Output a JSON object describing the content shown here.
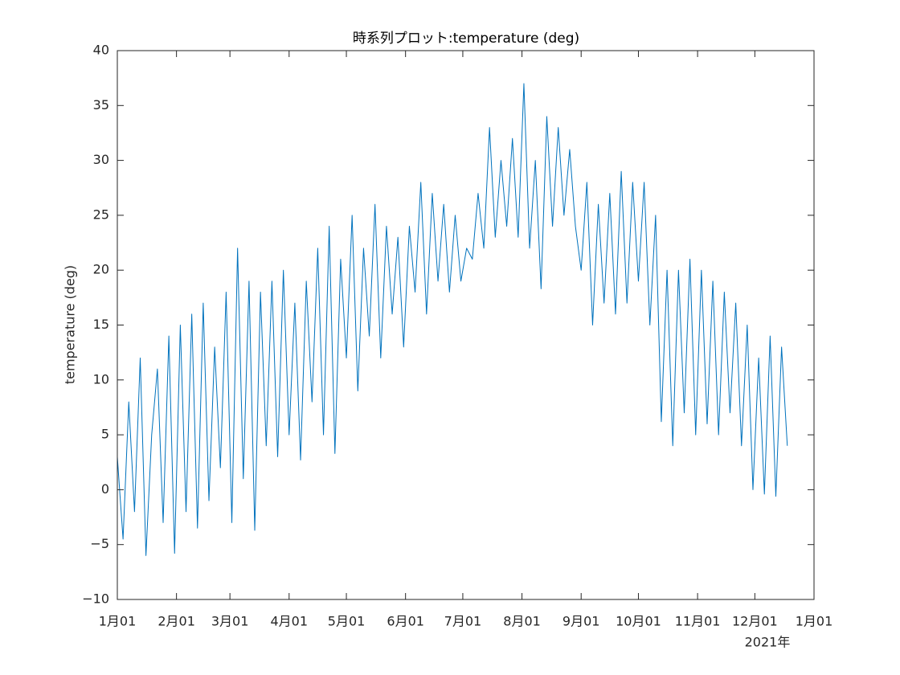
{
  "chart_data": {
    "type": "line",
    "title": "時系列プロット:temperature (deg)",
    "ylabel": "temperature (deg)",
    "x_secondary_label": "2021年",
    "x": [
      "2021-01-01",
      "2021-01-04",
      "2021-01-07",
      "2021-01-10",
      "2021-01-13",
      "2021-01-16",
      "2021-01-19",
      "2021-01-22",
      "2021-01-25",
      "2021-01-28",
      "2021-01-31",
      "2021-02-03",
      "2021-02-06",
      "2021-02-09",
      "2021-02-12",
      "2021-02-15",
      "2021-02-18",
      "2021-02-21",
      "2021-02-24",
      "2021-02-27",
      "2021-03-02",
      "2021-03-05",
      "2021-03-08",
      "2021-03-11",
      "2021-03-14",
      "2021-03-17",
      "2021-03-20",
      "2021-03-23",
      "2021-03-26",
      "2021-03-29",
      "2021-04-01",
      "2021-04-04",
      "2021-04-07",
      "2021-04-10",
      "2021-04-13",
      "2021-04-16",
      "2021-04-19",
      "2021-04-22",
      "2021-04-25",
      "2021-04-28",
      "2021-05-01",
      "2021-05-04",
      "2021-05-07",
      "2021-05-10",
      "2021-05-13",
      "2021-05-16",
      "2021-05-19",
      "2021-05-22",
      "2021-05-25",
      "2021-05-28",
      "2021-05-31",
      "2021-06-03",
      "2021-06-06",
      "2021-06-09",
      "2021-06-12",
      "2021-06-15",
      "2021-06-18",
      "2021-06-21",
      "2021-06-24",
      "2021-06-27",
      "2021-06-30",
      "2021-07-03",
      "2021-07-06",
      "2021-07-09",
      "2021-07-12",
      "2021-07-15",
      "2021-07-18",
      "2021-07-21",
      "2021-07-24",
      "2021-07-27",
      "2021-07-30",
      "2021-08-02",
      "2021-08-05",
      "2021-08-08",
      "2021-08-11",
      "2021-08-14",
      "2021-08-17",
      "2021-08-20",
      "2021-08-23",
      "2021-08-26",
      "2021-08-29",
      "2021-09-01",
      "2021-09-04",
      "2021-09-07",
      "2021-09-10",
      "2021-09-13",
      "2021-09-16",
      "2021-09-19",
      "2021-09-22",
      "2021-09-25",
      "2021-09-28",
      "2021-10-01",
      "2021-10-04",
      "2021-10-07",
      "2021-10-10",
      "2021-10-13",
      "2021-10-16",
      "2021-10-19",
      "2021-10-22",
      "2021-10-25",
      "2021-10-28",
      "2021-10-31",
      "2021-11-03",
      "2021-11-06",
      "2021-11-09",
      "2021-11-12",
      "2021-11-15",
      "2021-11-18",
      "2021-11-21",
      "2021-11-24",
      "2021-11-27",
      "2021-11-30",
      "2021-12-03",
      "2021-12-06",
      "2021-12-09",
      "2021-12-12",
      "2021-12-15",
      "2021-12-18"
    ],
    "series": [
      {
        "color": "#0072bd",
        "values": [
          3,
          -4.5,
          8,
          -2,
          12,
          -6,
          5,
          11,
          -3,
          14,
          -5.8,
          15,
          -2,
          16,
          -3.5,
          17,
          -1,
          13,
          2,
          18,
          -3,
          22,
          1,
          19,
          -3.7,
          18,
          4,
          19,
          3,
          20,
          5,
          17,
          2.7,
          19,
          8,
          22,
          5,
          24,
          3.3,
          21,
          12,
          25,
          9,
          22,
          14,
          26,
          12,
          24,
          16,
          23,
          13,
          24,
          18,
          28,
          16,
          27,
          19,
          26,
          18,
          25,
          19,
          22,
          21,
          27,
          22,
          33,
          23,
          30,
          24,
          32,
          23,
          37,
          22,
          30,
          18.3,
          34,
          24,
          33,
          25,
          31,
          24,
          20,
          28,
          15,
          26,
          17,
          27,
          16,
          29,
          17,
          28,
          19,
          28,
          15,
          25,
          6.2,
          20,
          4,
          20,
          7,
          21,
          5,
          20,
          6,
          19,
          5,
          18,
          7,
          17,
          4,
          15,
          0,
          12,
          -0.4,
          14,
          -0.6,
          13,
          4
        ]
      }
    ],
    "xlim": [
      "2021-01-01",
      "2022-01-01"
    ],
    "xticks": [
      {
        "value": "2021-01-01",
        "label": "1月01"
      },
      {
        "value": "2021-02-01",
        "label": "2月01"
      },
      {
        "value": "2021-03-01",
        "label": "3月01"
      },
      {
        "value": "2021-04-01",
        "label": "4月01"
      },
      {
        "value": "2021-05-01",
        "label": "5月01"
      },
      {
        "value": "2021-06-01",
        "label": "6月01"
      },
      {
        "value": "2021-07-01",
        "label": "7月01"
      },
      {
        "value": "2021-08-01",
        "label": "8月01"
      },
      {
        "value": "2021-09-01",
        "label": "9月01"
      },
      {
        "value": "2021-10-01",
        "label": "10月01"
      },
      {
        "value": "2021-11-01",
        "label": "11月01"
      },
      {
        "value": "2021-12-01",
        "label": "12月01"
      },
      {
        "value": "2022-01-01",
        "label": "1月01"
      }
    ],
    "ylim": [
      -10,
      40
    ],
    "yticks": [
      {
        "value": -10,
        "label": "−10"
      },
      {
        "value": -5,
        "label": "−5"
      },
      0,
      5,
      10,
      15,
      20,
      25,
      30,
      35,
      40
    ],
    "grid": false
  }
}
